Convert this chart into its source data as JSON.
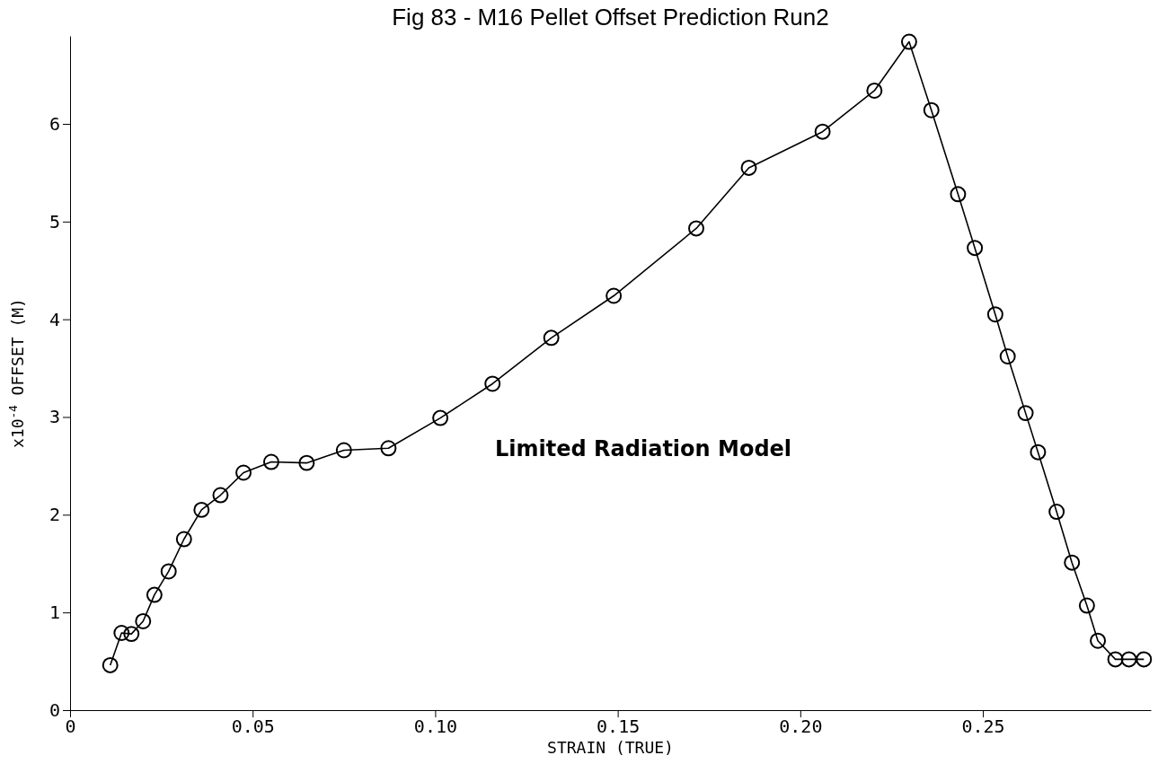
{
  "chart_data": {
    "type": "line",
    "title": "Fig 83 - M16 Pellet Offset Prediction Run2",
    "xlabel": "STRAIN (TRUE)",
    "ylabel": "x10$^{-4}$  OFFSET (M)",
    "annotations": [
      "Limited Radiation Model"
    ],
    "x": [
      0.011,
      0.0141,
      0.0168,
      0.02,
      0.0231,
      0.027,
      0.0312,
      0.036,
      0.0412,
      0.0475,
      0.0551,
      0.0648,
      0.075,
      0.0872,
      0.1014,
      0.1157,
      0.1318,
      0.1489,
      0.1715,
      0.1859,
      0.2061,
      0.2203,
      0.2298,
      0.2359,
      0.2432,
      0.2478,
      0.2534,
      0.2568,
      0.2617,
      0.2651,
      0.2702,
      0.2744,
      0.2785,
      0.2815,
      0.2863,
      0.29,
      0.2941
    ],
    "series": [
      {
        "color": "#000000",
        "values": [
          0.46,
          0.79,
          0.78,
          0.91,
          1.18,
          1.42,
          1.75,
          2.05,
          2.2,
          2.43,
          2.54,
          2.53,
          2.66,
          2.68,
          2.99,
          3.34,
          3.81,
          4.24,
          4.93,
          5.55,
          5.92,
          6.34,
          6.84,
          6.14,
          5.28,
          4.73,
          4.05,
          3.62,
          3.04,
          2.64,
          2.03,
          1.51,
          1.07,
          0.71,
          0.52,
          0.52,
          0.52
        ]
      }
    ],
    "xlim": [
      0,
      0.296
    ],
    "ylim": [
      0,
      6.9
    ],
    "xticks": [
      0,
      {
        "value": 0.05,
        "label": "0.05"
      },
      {
        "value": 0.1,
        "label": "0.10"
      },
      {
        "value": 0.15,
        "label": "0.15"
      },
      {
        "value": 0.2,
        "label": "0.20"
      },
      {
        "value": 0.25,
        "label": "0.25"
      }
    ],
    "yticks": [
      0,
      1,
      2,
      3,
      4,
      5,
      6
    ],
    "grid": false,
    "marker": "circle",
    "line_style": "solid"
  }
}
